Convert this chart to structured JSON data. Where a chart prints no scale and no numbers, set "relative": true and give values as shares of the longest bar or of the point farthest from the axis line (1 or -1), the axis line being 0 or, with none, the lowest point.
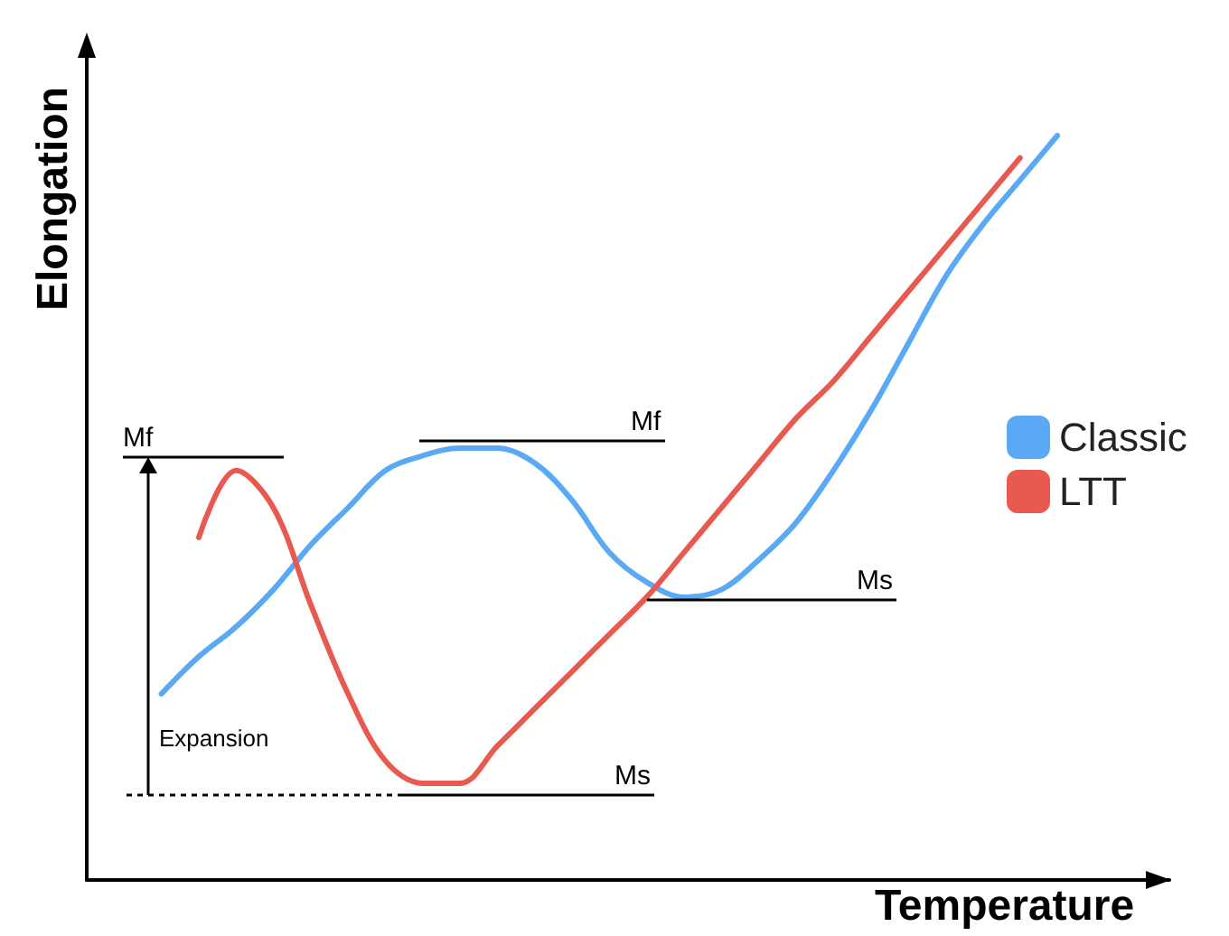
{
  "chart_data": {
    "type": "line",
    "relative": true,
    "xlabel": "Temperature",
    "ylabel": "Elongation",
    "legend": "right",
    "marker": "none",
    "line_style": "solid",
    "categories": [
      null,
      null,
      null,
      null,
      null,
      null,
      null,
      null,
      null,
      null,
      null,
      null,
      null,
      null,
      null,
      null,
      null,
      null,
      null,
      null,
      null,
      null,
      null,
      null,
      null,
      null,
      null,
      null,
      null,
      null
    ],
    "series": [
      {
        "name": "Classic",
        "color": "#5aa9f5",
        "values": [
          null,
          null,
          0.25,
          0.3,
          0.34,
          0.39,
          0.45,
          0.5,
          0.55,
          0.57,
          0.58,
          0.58,
          0.56,
          0.51,
          0.44,
          0.4,
          0.38,
          0.39,
          0.43,
          0.48,
          0.55,
          0.63,
          0.72,
          0.81,
          0.88,
          0.94,
          1,
          null,
          null,
          null
        ]
      },
      {
        "name": "LTT",
        "color": "#e85a50",
        "values": [
          null,
          null,
          null,
          0.46,
          0.55,
          0.5,
          0.37,
          0.25,
          0.16,
          0.13,
          0.13,
          0.18,
          0.23,
          0.28,
          0.33,
          0.38,
          0.44,
          0.5,
          0.56,
          0.62,
          0.67,
          0.73,
          0.79,
          0.85,
          0.91,
          0.97,
          null,
          null,
          null,
          null
        ]
      }
    ],
    "annotations": [
      "Mf",
      "Mf",
      "Ms",
      "Ms",
      "Expansion"
    ]
  }
}
